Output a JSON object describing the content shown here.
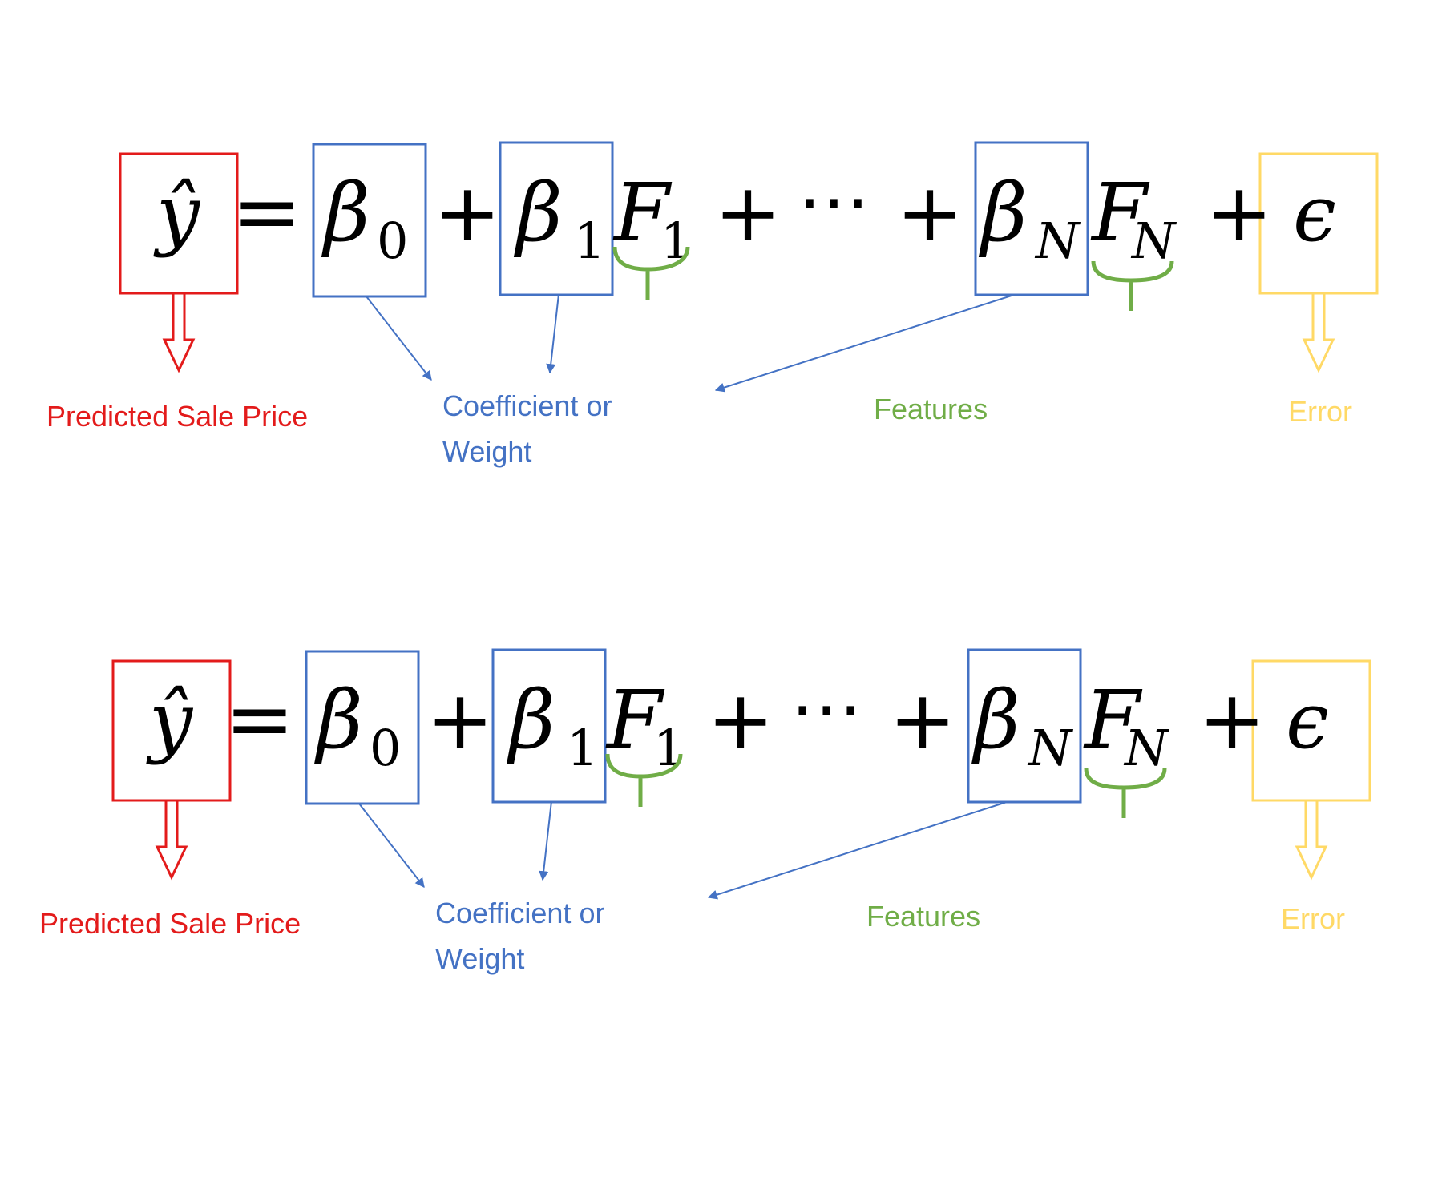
{
  "equation": {
    "y_hat": "ŷ",
    "equals": "=",
    "beta": "β",
    "sub_0": "0",
    "sub_1": "1",
    "sub_N": "N",
    "plus": "+",
    "feature": "F",
    "dots": "⋯",
    "epsilon": "ϵ"
  },
  "labels": {
    "predicted": "Predicted Sale Price",
    "coefficient_line1": "Coefficient or",
    "coefficient_line2": "Weight",
    "features": "Features",
    "error": "Error"
  },
  "colors": {
    "predicted": "#e31b1b",
    "coefficient": "#4472c4",
    "features": "#70ad47",
    "error": "#ffd966",
    "math": "#000000"
  },
  "icons": {
    "predicted_arrow": "hollow-down-arrow-icon",
    "error_arrow": "hollow-down-arrow-icon",
    "coefficient_arrows": "pointer-arrow-icon",
    "feature_brace": "curly-brace-icon"
  }
}
